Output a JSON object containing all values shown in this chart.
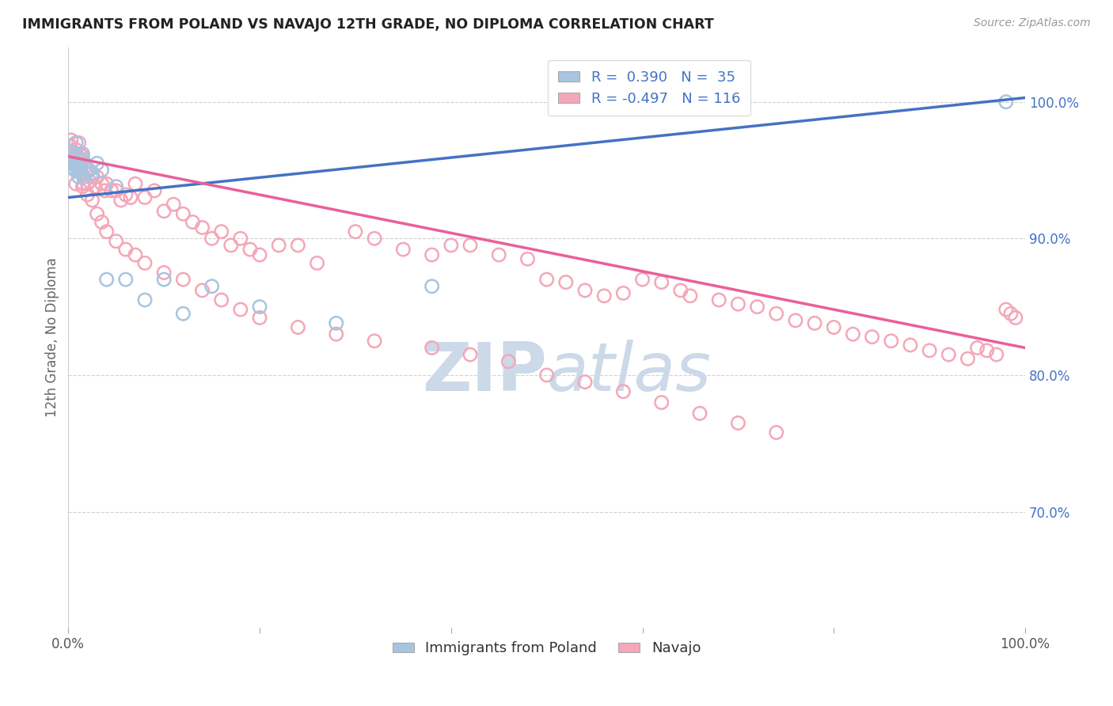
{
  "title": "IMMIGRANTS FROM POLAND VS NAVAJO 12TH GRADE, NO DIPLOMA CORRELATION CHART",
  "source": "Source: ZipAtlas.com",
  "ylabel": "12th Grade, No Diploma",
  "r_poland": 0.39,
  "n_poland": 35,
  "r_navajo": -0.497,
  "n_navajo": 116,
  "color_poland": "#a8c4e0",
  "color_navajo": "#f4a7b9",
  "line_color_poland": "#4472c4",
  "line_color_navajo": "#e8609a",
  "watermark_color": "#ccd9e8",
  "xlim": [
    0.0,
    1.0
  ],
  "ylim": [
    0.615,
    1.04
  ],
  "poland_line_x0": 0.0,
  "poland_line_y0": 0.93,
  "poland_line_x1": 1.0,
  "poland_line_y1": 1.003,
  "navajo_line_x0": 0.0,
  "navajo_line_y0": 0.96,
  "navajo_line_x1": 1.0,
  "navajo_line_y1": 0.82,
  "poland_x": [
    0.002,
    0.003,
    0.004,
    0.005,
    0.005,
    0.006,
    0.007,
    0.008,
    0.008,
    0.009,
    0.01,
    0.01,
    0.011,
    0.012,
    0.013,
    0.014,
    0.015,
    0.016,
    0.018,
    0.02,
    0.022,
    0.025,
    0.03,
    0.035,
    0.04,
    0.05,
    0.06,
    0.08,
    0.1,
    0.12,
    0.15,
    0.2,
    0.28,
    0.38,
    0.98
  ],
  "poland_y": [
    0.96,
    0.955,
    0.952,
    0.958,
    0.963,
    0.955,
    0.95,
    0.955,
    0.97,
    0.96,
    0.955,
    0.95,
    0.945,
    0.952,
    0.948,
    0.958,
    0.962,
    0.945,
    0.948,
    0.95,
    0.95,
    0.948,
    0.955,
    0.95,
    0.87,
    0.938,
    0.87,
    0.855,
    0.87,
    0.845,
    0.865,
    0.85,
    0.838,
    0.865,
    1.0
  ],
  "navajo_x": [
    0.002,
    0.003,
    0.004,
    0.005,
    0.006,
    0.007,
    0.008,
    0.009,
    0.01,
    0.011,
    0.012,
    0.013,
    0.014,
    0.015,
    0.016,
    0.017,
    0.018,
    0.02,
    0.022,
    0.025,
    0.028,
    0.03,
    0.035,
    0.038,
    0.04,
    0.045,
    0.05,
    0.055,
    0.06,
    0.065,
    0.07,
    0.08,
    0.09,
    0.1,
    0.11,
    0.12,
    0.13,
    0.14,
    0.15,
    0.16,
    0.17,
    0.18,
    0.19,
    0.2,
    0.22,
    0.24,
    0.26,
    0.3,
    0.32,
    0.35,
    0.38,
    0.4,
    0.42,
    0.45,
    0.48,
    0.5,
    0.52,
    0.54,
    0.56,
    0.58,
    0.6,
    0.62,
    0.64,
    0.65,
    0.68,
    0.7,
    0.72,
    0.74,
    0.76,
    0.78,
    0.8,
    0.82,
    0.84,
    0.86,
    0.88,
    0.9,
    0.92,
    0.94,
    0.95,
    0.96,
    0.97,
    0.98,
    0.985,
    0.99,
    0.005,
    0.008,
    0.012,
    0.015,
    0.02,
    0.025,
    0.03,
    0.035,
    0.04,
    0.05,
    0.06,
    0.07,
    0.08,
    0.1,
    0.12,
    0.14,
    0.16,
    0.18,
    0.2,
    0.24,
    0.28,
    0.32,
    0.38,
    0.42,
    0.46,
    0.5,
    0.54,
    0.58,
    0.62,
    0.66,
    0.7,
    0.74
  ],
  "navajo_y": [
    0.968,
    0.972,
    0.958,
    0.962,
    0.955,
    0.95,
    0.965,
    0.958,
    0.952,
    0.97,
    0.962,
    0.958,
    0.955,
    0.96,
    0.94,
    0.955,
    0.948,
    0.94,
    0.942,
    0.945,
    0.938,
    0.945,
    0.94,
    0.935,
    0.94,
    0.935,
    0.935,
    0.928,
    0.932,
    0.93,
    0.94,
    0.93,
    0.935,
    0.92,
    0.925,
    0.918,
    0.912,
    0.908,
    0.9,
    0.905,
    0.895,
    0.9,
    0.892,
    0.888,
    0.895,
    0.895,
    0.882,
    0.905,
    0.9,
    0.892,
    0.888,
    0.895,
    0.895,
    0.888,
    0.885,
    0.87,
    0.868,
    0.862,
    0.858,
    0.86,
    0.87,
    0.868,
    0.862,
    0.858,
    0.855,
    0.852,
    0.85,
    0.845,
    0.84,
    0.838,
    0.835,
    0.83,
    0.828,
    0.825,
    0.822,
    0.818,
    0.815,
    0.812,
    0.82,
    0.818,
    0.815,
    0.848,
    0.845,
    0.842,
    0.96,
    0.94,
    0.955,
    0.938,
    0.932,
    0.928,
    0.918,
    0.912,
    0.905,
    0.898,
    0.892,
    0.888,
    0.882,
    0.875,
    0.87,
    0.862,
    0.855,
    0.848,
    0.842,
    0.835,
    0.83,
    0.825,
    0.82,
    0.815,
    0.81,
    0.8,
    0.795,
    0.788,
    0.78,
    0.772,
    0.765,
    0.758
  ]
}
